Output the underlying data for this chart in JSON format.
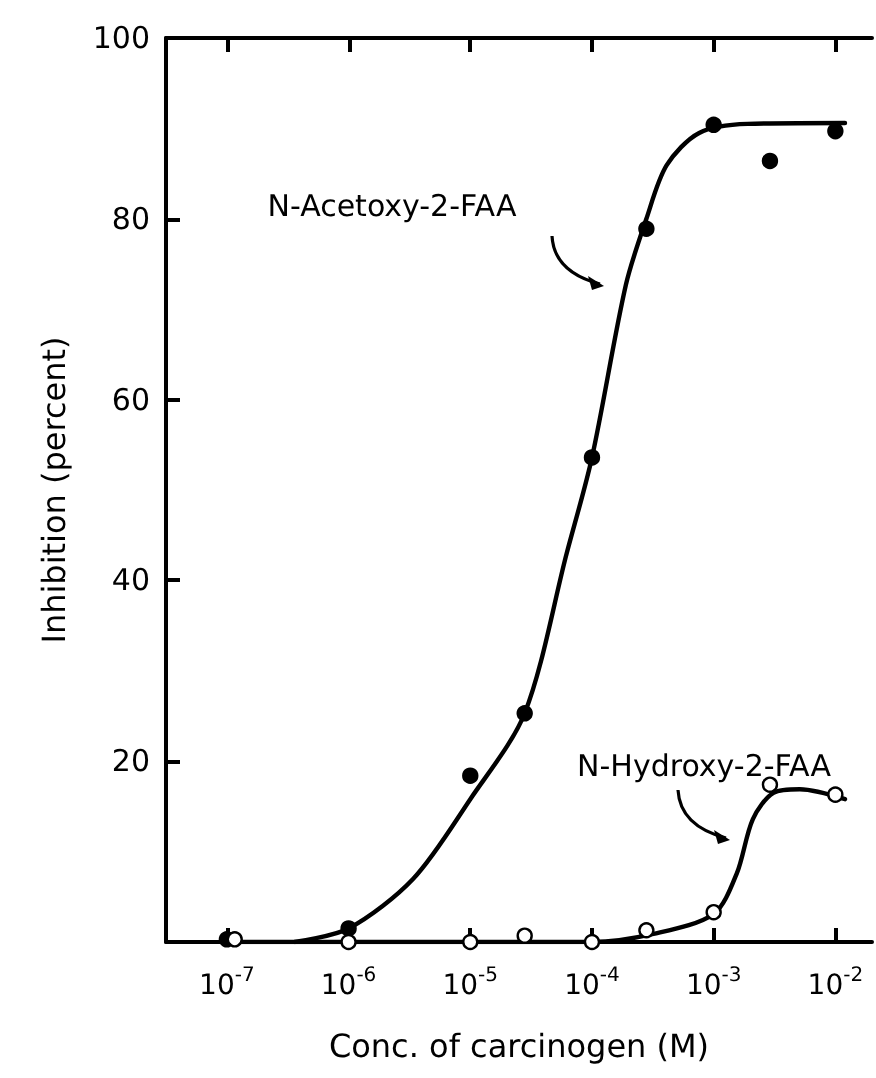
{
  "chart_data": {
    "type": "line",
    "xlabel": "Conc. of carcinogen (M)",
    "ylabel": "Inhibition (percent)",
    "log": "x",
    "xlim": [
      3.16e-08,
      0.02
    ],
    "ylim": [
      0,
      100
    ],
    "xticks": [
      {
        "value": 1e-07,
        "label": "10$^{-7}$"
      },
      {
        "value": 1e-06,
        "label": "10$^{-6}$"
      },
      {
        "value": 1e-05,
        "label": "10$^{-5}$"
      },
      {
        "value": 0.0001,
        "label": "10$^{-4}$"
      },
      {
        "value": 0.001,
        "label": "10$^{-3}$"
      },
      {
        "value": 0.01,
        "label": "10$^{-2}$"
      }
    ],
    "yticks": [
      20,
      40,
      60,
      80,
      100
    ],
    "series": [
      {
        "color": "#000000",
        "marker": "none",
        "x": [
          3.6e-07,
          1e-06,
          3.4e-06,
          1e-05,
          2.8e-05,
          6.2e-05,
          0.0001,
          0.00019,
          0.00028,
          0.00041,
          0.00076,
          0.0019,
          0.012
        ],
        "values": [
          0,
          1.5,
          7,
          15.8,
          25.3,
          43,
          53.6,
          72.7,
          80,
          85.9,
          89.5,
          90.5,
          90.6
        ]
      },
      {
        "type": "scatter",
        "color": "#000000",
        "marker": "circle",
        "x": [
          1e-07,
          1e-06,
          1e-05,
          2.8e-05,
          0.0001,
          0.00028,
          0.001,
          0.0029,
          0.01
        ],
        "values": [
          0.3,
          1.5,
          18.4,
          25.3,
          53.6,
          78.9,
          90.4,
          86.4,
          89.7
        ]
      },
      {
        "color": "#000000",
        "marker": "none",
        "x": [
          1.2e-07,
          0.0001,
          0.00032,
          0.001,
          0.00155,
          0.0021,
          0.0031,
          0.0051,
          0.012
        ],
        "values": [
          0,
          0,
          0.9,
          3.1,
          7.6,
          13.6,
          16.5,
          16.9,
          15.8
        ]
      },
      {
        "type": "scatter",
        "color": "#ffffff",
        "marker": "circle",
        "x": [
          1.16e-07,
          1e-06,
          1e-05,
          2.8e-05,
          0.0001,
          0.00028,
          0.001,
          0.0029,
          0.01
        ],
        "values": [
          0.3,
          0,
          0,
          0.7,
          0,
          1.3,
          3.3,
          17.4,
          16.3
        ]
      }
    ],
    "annotations": [
      "N-Acetoxy-2-FAA",
      "N-Hydroxy-2-FAA"
    ]
  }
}
